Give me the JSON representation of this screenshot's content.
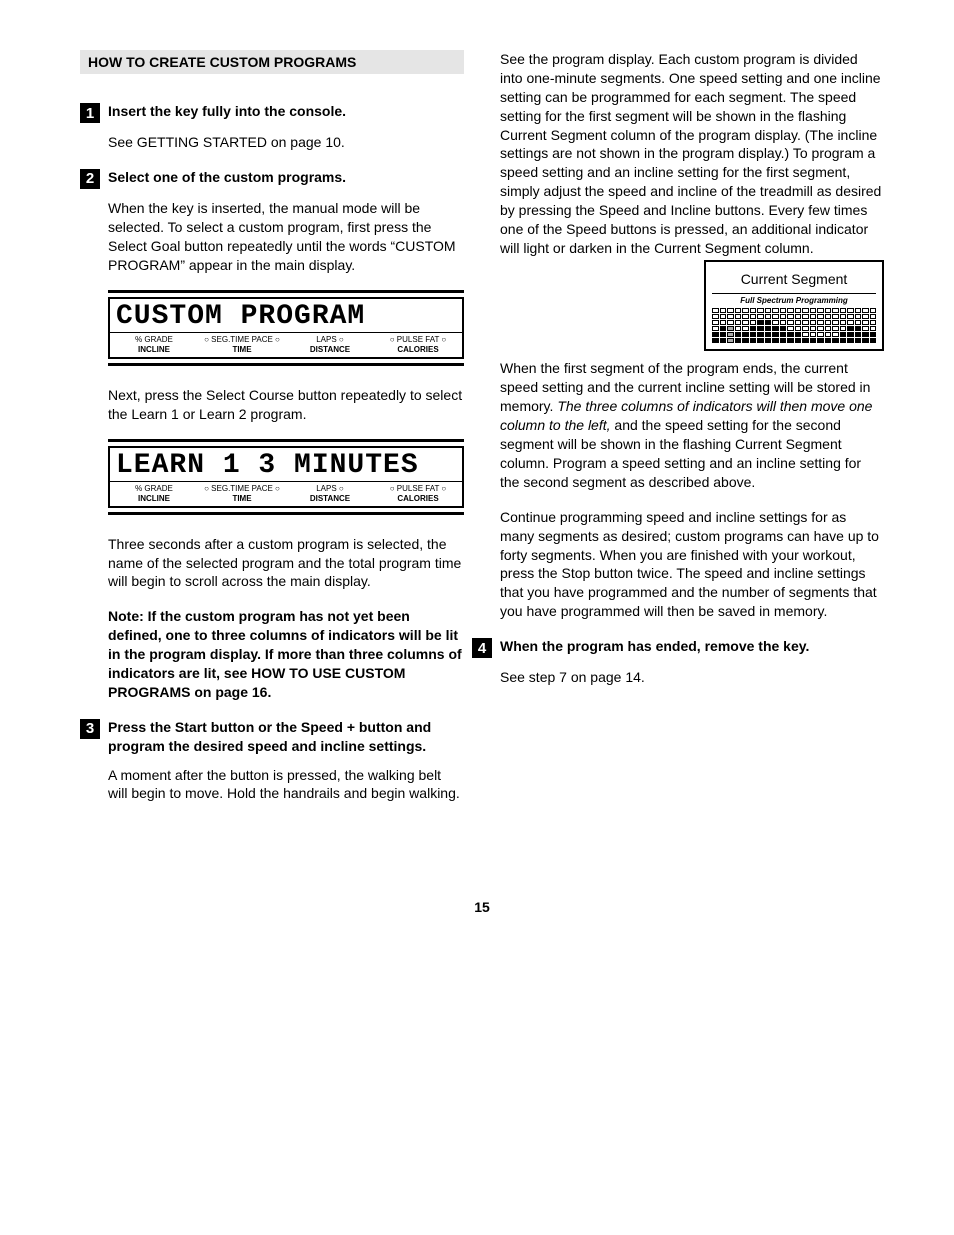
{
  "pageNumber": "15",
  "header": "HOW TO CREATE CUSTOM PROGRAMS",
  "steps": {
    "s1": {
      "num": "1",
      "title": "Insert the key fully into the console.",
      "p1": "See GETTING STARTED on page 10."
    },
    "s2": {
      "num": "2",
      "title": "Select one of the custom programs.",
      "p1": "When the key is inserted, the manual mode will be selected. To select a custom program, first press the Select Goal button repeatedly until the words “CUSTOM PROGRAM” appear in the main display.",
      "p2": "Next, press the Select Course button repeatedly to select the Learn 1 or Learn 2 program.",
      "p3": "Three seconds after a custom program is selected, the name of the selected program and the total program time will begin to scroll across the main display.",
      "p4": "Note: If the custom program has not yet been defined, one to three columns of indicators will be lit in the program display. If more than three columns of indicators are lit, see HOW TO USE CUSTOM PROGRAMS on page 16."
    },
    "s3": {
      "num": "3",
      "title": "Press the Start button or the Speed + button and program the desired speed and incline settings.",
      "p1": "A moment after the button is pressed, the walking belt will begin to move. Hold the handrails and begin walking."
    },
    "s4": {
      "num": "4",
      "title": "When the program has ended, remove the key.",
      "p1": "See step 7 on page 14."
    }
  },
  "lcd1": {
    "text": "CUSTOM PROGRAM",
    "labels": {
      "c1a": "% GRADE",
      "c1b": "INCLINE",
      "c2a": "○ SEG.TIME  PACE ○",
      "c2b": "TIME",
      "c3a": "LAPS ○",
      "c3b": "DISTANCE",
      "c4a": "○ PULSE  FAT ○",
      "c4b": "CALORIES"
    }
  },
  "lcd2": {
    "text": "LEARN 1   3 MINUTES",
    "labels": {
      "c1a": "% GRADE",
      "c1b": "INCLINE",
      "c2a": "○ SEG.TIME  PACE ○",
      "c2b": "TIME",
      "c3a": "LAPS ○",
      "c3b": "DISTANCE",
      "c4a": "○ PULSE  FAT ○",
      "c4b": "CALORIES"
    }
  },
  "right": {
    "p1": "See the program display. Each custom program is divided into one-minute segments. One speed setting and one incline setting can be programmed for each segment. The speed setting for the first segment will be shown in the flashing Current Segment column of the program display. (The incline settings are not shown in the program display.) To program a speed setting and an incline setting for the first segment, simply adjust the speed and incline of the treadmill as desired by pressing the Speed and Incline buttons. Every few times one of the Speed buttons is pressed, an additional indicator will light or darken in the Current Segment column.",
    "p2a": "When the first segment of the program ends, the current speed setting and the current incline setting will be stored in memory. ",
    "p2b": "The three columns of indicators will then move one column to the left,",
    "p2c": " and the speed setting for the second segment will be shown in the flashing Current Segment column. Program a speed setting and an incline setting for the second segment as described above.",
    "p3": "Continue programming speed and incline settings for as many segments as desired; custom programs can have up to forty segments. When you are finished with your workout, press the Stop button twice. The speed and incline settings that you have programmed and the number of segments that you have programmed will then be saved in memory."
  },
  "figure": {
    "title": "Current Segment",
    "sub": "Full Spectrum Programming",
    "heights": [
      2,
      3,
      3,
      2,
      2,
      3,
      4,
      4,
      3,
      3,
      2,
      2,
      1,
      1,
      1,
      1,
      1,
      2,
      3,
      3,
      2,
      2
    ],
    "segCol": 2,
    "rows": 6
  }
}
